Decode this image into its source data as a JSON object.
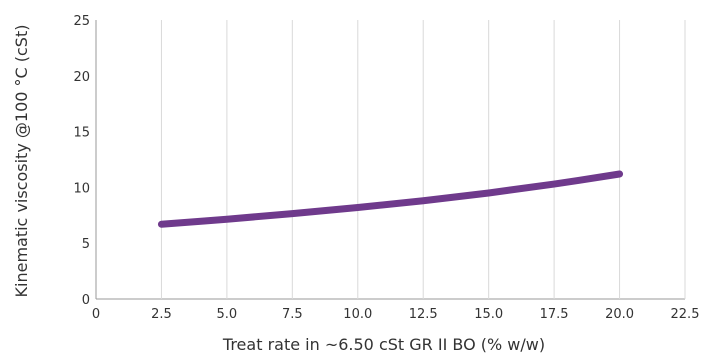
{
  "chart_data": {
    "type": "line",
    "title": "",
    "xlabel": "Treat rate in ~6.50 cSt GR II BO (% w/w)",
    "ylabel": "Kinematic viscosity @100 °C (cSt)",
    "xlim": [
      0,
      22.5
    ],
    "ylim": [
      0,
      25
    ],
    "x_ticks": [
      "0",
      "2.5",
      "5.0",
      "7.5",
      "10.0",
      "12.5",
      "15.0",
      "17.5",
      "20.0",
      "22.5"
    ],
    "y_ticks": [
      "0",
      "5",
      "10",
      "15",
      "20",
      "25"
    ],
    "grid": "vertical",
    "legend": "none",
    "series": [
      {
        "color": "#6f3a8c",
        "x": [
          2.5,
          5.0,
          7.5,
          10.0,
          12.5,
          15.0,
          17.5,
          20.0
        ],
        "y": [
          6.7,
          7.15,
          7.65,
          8.2,
          8.8,
          9.5,
          10.3,
          11.2
        ]
      }
    ]
  }
}
